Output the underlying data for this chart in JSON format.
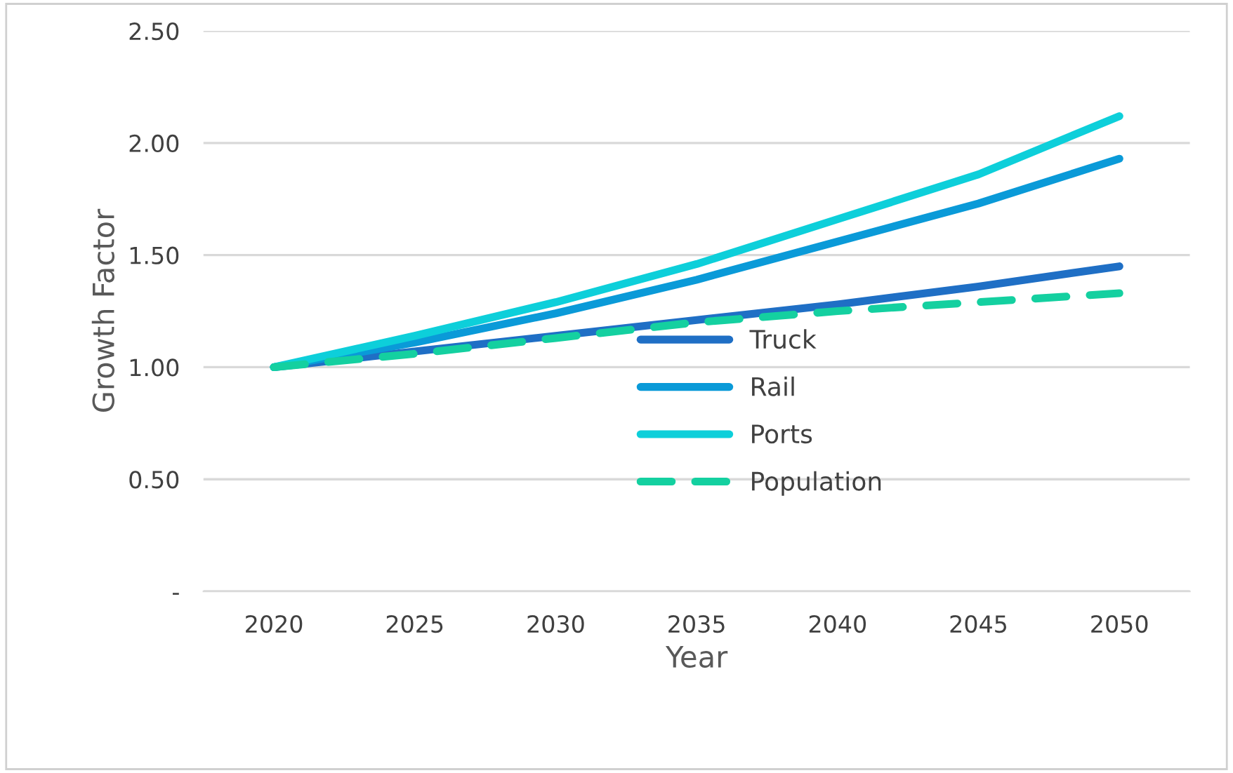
{
  "chart_data": {
    "type": "line",
    "xlabel": "Year",
    "ylabel": "Growth Factor",
    "x": [
      2020,
      2025,
      2030,
      2035,
      2040,
      2045,
      2050
    ],
    "xlim": [
      2017.5,
      2052.5
    ],
    "xticks": [
      2020,
      2025,
      2030,
      2035,
      2040,
      2045,
      2050
    ],
    "ylim": [
      0,
      2.5
    ],
    "yticks": [
      {
        "value": 0,
        "label": "-"
      },
      {
        "value": 0.5,
        "label": "0.50"
      },
      {
        "value": 1,
        "label": "1.00"
      },
      {
        "value": 1.5,
        "label": "1.50"
      },
      {
        "value": 2,
        "label": "2.00"
      },
      {
        "value": 2.5,
        "label": "2.50"
      }
    ],
    "grid": "y",
    "legend": "center",
    "marker": "none",
    "series": [
      {
        "name": "Truck",
        "color": "#1f6fc5",
        "line_style": "solid",
        "values": [
          1.0,
          1.07,
          1.14,
          1.21,
          1.28,
          1.36,
          1.45
        ]
      },
      {
        "name": "Rail",
        "color": "#0a9ad8",
        "line_style": "solid",
        "values": [
          1.0,
          1.11,
          1.24,
          1.39,
          1.56,
          1.73,
          1.93
        ]
      },
      {
        "name": "Ports",
        "color": "#0dcfda",
        "line_style": "solid",
        "values": [
          1.0,
          1.14,
          1.29,
          1.46,
          1.66,
          1.86,
          2.12
        ]
      },
      {
        "name": "Population",
        "color": "#14d0a0",
        "line_style": "dashed",
        "values": [
          1.0,
          1.06,
          1.13,
          1.2,
          1.25,
          1.29,
          1.33
        ]
      }
    ]
  }
}
